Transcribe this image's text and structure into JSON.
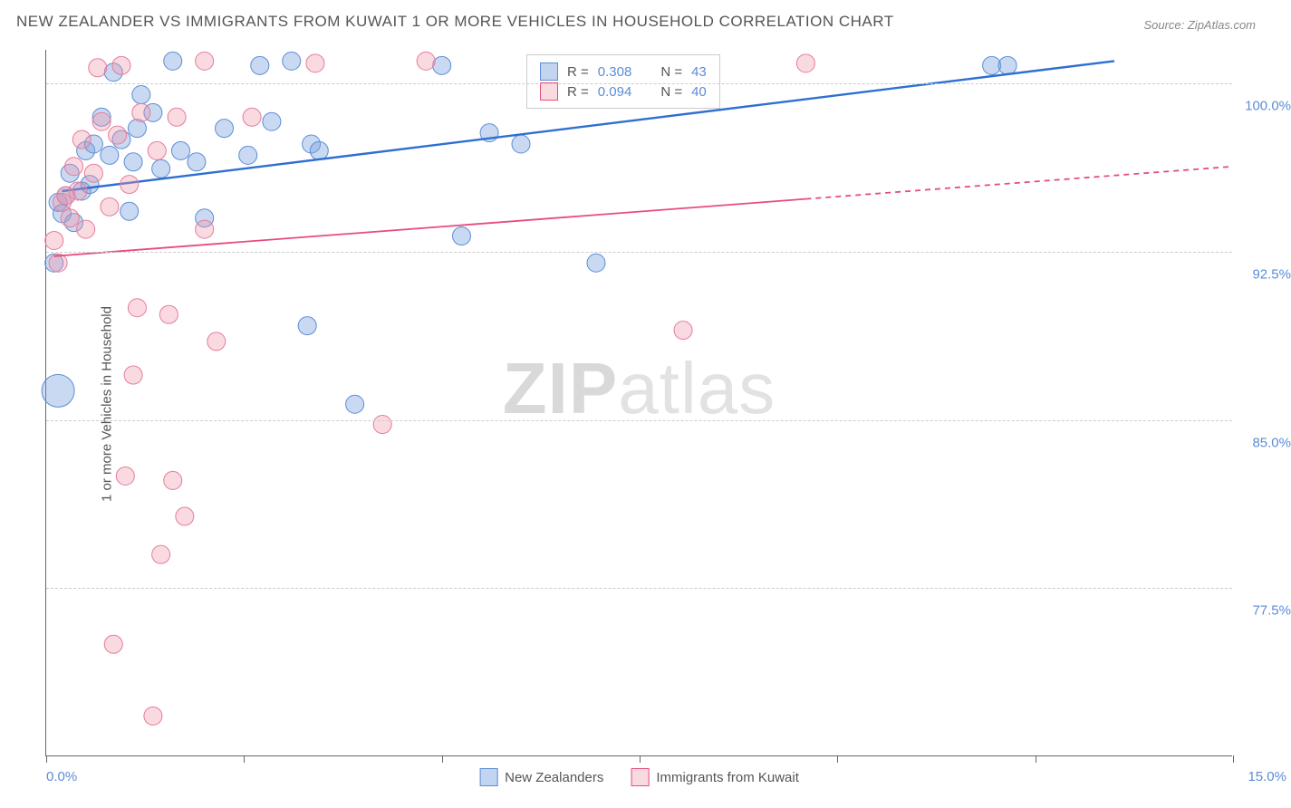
{
  "title": "NEW ZEALANDER VS IMMIGRANTS FROM KUWAIT 1 OR MORE VEHICLES IN HOUSEHOLD CORRELATION CHART",
  "source": "Source: ZipAtlas.com",
  "ylabel": "1 or more Vehicles in Household",
  "watermark_a": "ZIP",
  "watermark_b": "atlas",
  "chart": {
    "type": "scatter",
    "xlim": [
      0,
      15
    ],
    "ylim": [
      70,
      101.5
    ],
    "ytick_labels": [
      "100.0%",
      "92.5%",
      "85.0%",
      "77.5%"
    ],
    "ytick_values": [
      100.0,
      92.5,
      85.0,
      77.5
    ],
    "xtick_values": [
      0,
      2.5,
      5.0,
      7.5,
      10.0,
      12.5,
      15.0
    ],
    "xtick_label_left": "0.0%",
    "xtick_label_right": "15.0%",
    "grid_color": "#cccccc",
    "background_color": "#ffffff",
    "marker_radius": 10,
    "marker_radius_large": 18,
    "series": [
      {
        "name": "New Zealanders",
        "color_fill": "rgba(120,160,220,0.40)",
        "color_stroke": "#5b8dd6",
        "R": "0.308",
        "N": "43",
        "trend": {
          "x1": 0.2,
          "y1": 95.2,
          "x2": 13.5,
          "y2": 101.0,
          "stroke": "#2e6fd1",
          "width": 2.4,
          "dash_after_x": 15
        },
        "points": [
          {
            "x": 0.15,
            "y": 86.3,
            "r": 18
          },
          {
            "x": 0.1,
            "y": 92.0
          },
          {
            "x": 0.15,
            "y": 94.7
          },
          {
            "x": 0.2,
            "y": 94.2
          },
          {
            "x": 0.25,
            "y": 95.0
          },
          {
            "x": 0.3,
            "y": 96.0
          },
          {
            "x": 0.35,
            "y": 93.8
          },
          {
            "x": 0.45,
            "y": 95.2
          },
          {
            "x": 0.5,
            "y": 97.0
          },
          {
            "x": 0.55,
            "y": 95.5
          },
          {
            "x": 0.6,
            "y": 97.3
          },
          {
            "x": 0.7,
            "y": 98.5
          },
          {
            "x": 0.8,
            "y": 96.8
          },
          {
            "x": 0.85,
            "y": 100.5
          },
          {
            "x": 0.95,
            "y": 97.5
          },
          {
            "x": 1.05,
            "y": 94.3
          },
          {
            "x": 1.1,
            "y": 96.5
          },
          {
            "x": 1.15,
            "y": 98.0
          },
          {
            "x": 1.2,
            "y": 99.5
          },
          {
            "x": 1.35,
            "y": 98.7
          },
          {
            "x": 1.45,
            "y": 96.2
          },
          {
            "x": 1.6,
            "y": 101.0
          },
          {
            "x": 1.7,
            "y": 97.0
          },
          {
            "x": 1.9,
            "y": 96.5
          },
          {
            "x": 2.0,
            "y": 94.0
          },
          {
            "x": 2.25,
            "y": 98.0
          },
          {
            "x": 2.55,
            "y": 96.8
          },
          {
            "x": 2.7,
            "y": 100.8
          },
          {
            "x": 2.85,
            "y": 98.3
          },
          {
            "x": 3.1,
            "y": 101.0
          },
          {
            "x": 3.3,
            "y": 89.2
          },
          {
            "x": 3.35,
            "y": 97.3
          },
          {
            "x": 3.45,
            "y": 97.0
          },
          {
            "x": 3.9,
            "y": 85.7
          },
          {
            "x": 5.0,
            "y": 100.8
          },
          {
            "x": 5.25,
            "y": 93.2
          },
          {
            "x": 5.6,
            "y": 97.8
          },
          {
            "x": 6.0,
            "y": 97.3
          },
          {
            "x": 6.95,
            "y": 92.0
          },
          {
            "x": 11.95,
            "y": 100.8
          },
          {
            "x": 12.15,
            "y": 100.8
          }
        ]
      },
      {
        "name": "Immigrants from Kuwait",
        "color_fill": "rgba(240,150,170,0.35)",
        "color_stroke": "#e77b9a",
        "R": "0.094",
        "N": "40",
        "trend": {
          "x1": 0.1,
          "y1": 92.3,
          "x2": 15.0,
          "y2": 96.3,
          "stroke": "#e74c7b",
          "width": 1.8,
          "dash_after_x": 9.6
        },
        "points": [
          {
            "x": 0.1,
            "y": 93.0
          },
          {
            "x": 0.15,
            "y": 92.0
          },
          {
            "x": 0.2,
            "y": 94.7
          },
          {
            "x": 0.25,
            "y": 95.0
          },
          {
            "x": 0.3,
            "y": 94.0
          },
          {
            "x": 0.35,
            "y": 96.3
          },
          {
            "x": 0.4,
            "y": 95.2
          },
          {
            "x": 0.45,
            "y": 97.5
          },
          {
            "x": 0.5,
            "y": 93.5
          },
          {
            "x": 0.6,
            "y": 96.0
          },
          {
            "x": 0.65,
            "y": 100.7
          },
          {
            "x": 0.7,
            "y": 98.3
          },
          {
            "x": 0.8,
            "y": 94.5
          },
          {
            "x": 0.85,
            "y": 75.0
          },
          {
            "x": 0.9,
            "y": 97.7
          },
          {
            "x": 0.95,
            "y": 100.8
          },
          {
            "x": 1.0,
            "y": 82.5
          },
          {
            "x": 1.05,
            "y": 95.5
          },
          {
            "x": 1.1,
            "y": 87.0
          },
          {
            "x": 1.15,
            "y": 90.0
          },
          {
            "x": 1.2,
            "y": 98.7
          },
          {
            "x": 1.35,
            "y": 71.8
          },
          {
            "x": 1.4,
            "y": 97.0
          },
          {
            "x": 1.45,
            "y": 79.0
          },
          {
            "x": 1.55,
            "y": 89.7
          },
          {
            "x": 1.6,
            "y": 82.3
          },
          {
            "x": 1.65,
            "y": 98.5
          },
          {
            "x": 1.75,
            "y": 80.7
          },
          {
            "x": 2.0,
            "y": 101.0
          },
          {
            "x": 2.0,
            "y": 93.5
          },
          {
            "x": 2.15,
            "y": 88.5
          },
          {
            "x": 2.6,
            "y": 98.5
          },
          {
            "x": 3.4,
            "y": 100.9
          },
          {
            "x": 4.25,
            "y": 84.8
          },
          {
            "x": 4.8,
            "y": 101.0
          },
          {
            "x": 8.05,
            "y": 89.0
          },
          {
            "x": 9.6,
            "y": 100.9
          }
        ]
      }
    ],
    "legend_top": {
      "r_label": "R =",
      "n_label": "N ="
    },
    "legend_bottom": [
      {
        "label": "New Zealanders",
        "swatch": "blue"
      },
      {
        "label": "Immigrants from Kuwait",
        "swatch": "pink"
      }
    ]
  }
}
